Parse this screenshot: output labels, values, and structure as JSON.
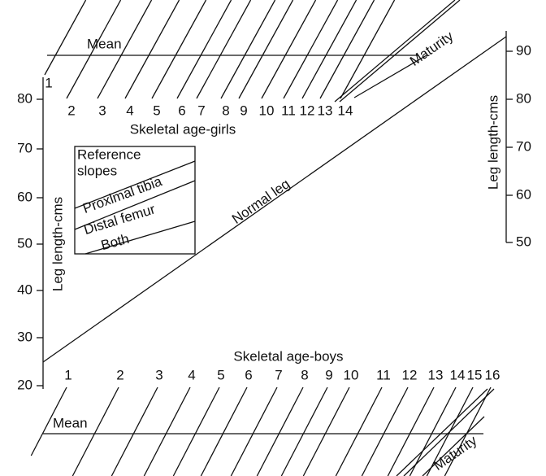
{
  "girls": {
    "mean": "Mean",
    "ages": [
      "1",
      "2",
      "3",
      "4",
      "5",
      "6",
      "7",
      "8",
      "9",
      "10",
      "11",
      "12",
      "13",
      "14"
    ],
    "maturity": "Maturity",
    "caption": "Skeletal age-girls"
  },
  "left_axis": {
    "title": "Leg length-cms",
    "ticks": [
      "80",
      "70",
      "60",
      "50",
      "40",
      "30",
      "20"
    ]
  },
  "right_axis": {
    "title": "Leg length-cms",
    "ticks": [
      "90",
      "80",
      "70",
      "60",
      "50"
    ]
  },
  "normal_leg": "Normal leg",
  "inset": {
    "title_lines": [
      "Reference",
      "slopes"
    ],
    "labels": [
      "Proxlmal tibia",
      "Distal femur",
      "Both"
    ]
  },
  "boys": {
    "caption": "Skeletal age-boys",
    "ages": [
      "1",
      "2",
      "3",
      "4",
      "5",
      "6",
      "7",
      "8",
      "9",
      "10",
      "11",
      "12",
      "13",
      "14",
      "15",
      "16"
    ],
    "mean": "Mean",
    "maturity": "Maturity"
  }
}
